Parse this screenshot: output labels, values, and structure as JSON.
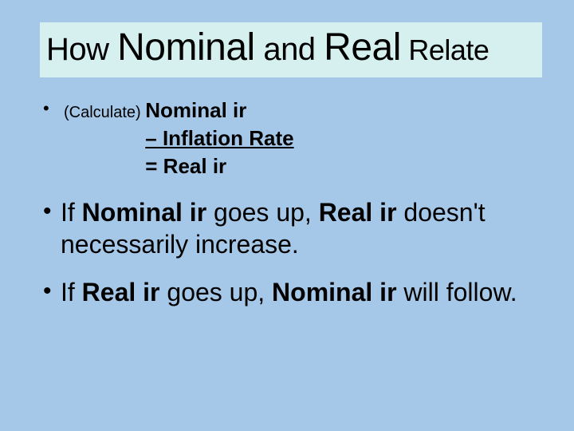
{
  "colors": {
    "slide_bg": "#a5c8e8",
    "title_bg": "#d6f0f0",
    "text": "#000000"
  },
  "typography": {
    "title_big_pt": 48,
    "title_med_pt": 40,
    "title_small_pt": 36,
    "calc_pt": 26,
    "calc_label_pt": 20,
    "body_pt": 32,
    "font_family": "Arial"
  },
  "title": {
    "w1": "How ",
    "w2": "Nominal",
    "w3": " and ",
    "w4": "Real",
    "w5": " Relate"
  },
  "calc": {
    "label": "(Calculate)  ",
    "line1": "Nominal ir",
    "line2": "– Inflation Rate",
    "line3": "= Real ir"
  },
  "points": [
    {
      "p1": "If ",
      "b1": "Nominal ir",
      "p2": " goes up, ",
      "b2": "Real ir",
      "p3": " doesn't necessarily increase."
    },
    {
      "p1": "If ",
      "b1": "Real ir",
      "p2": " goes up, ",
      "b2": "Nominal ir",
      "p3": " will follow."
    }
  ]
}
